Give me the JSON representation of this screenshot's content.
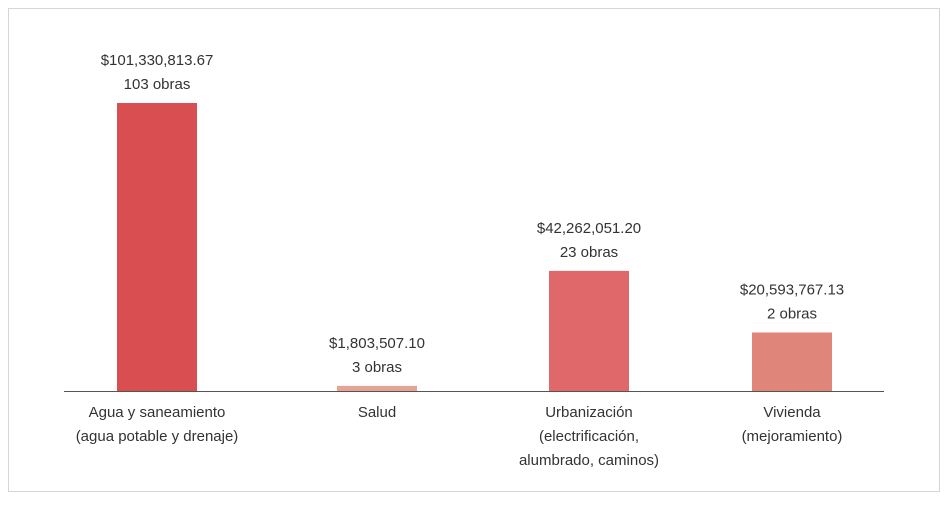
{
  "chart_data": {
    "type": "bar",
    "categories": [
      [
        "Agua y saneamiento",
        "(agua potable y drenaje)"
      ],
      [
        "Salud"
      ],
      [
        "Urbanización",
        "(electrificación,",
        "alumbrado, caminos)"
      ],
      [
        "Vivienda",
        "(mejoramiento)"
      ]
    ],
    "values": [
      101330813.67,
      1803507.1,
      42262051.2,
      20593767.13
    ],
    "value_labels": [
      "$101,330,813.67",
      "$1,803,507.10",
      "$42,262,051.20",
      "$20,593,767.13"
    ],
    "count_labels": [
      "103 obras",
      "3 obras",
      "23 obras",
      "2 obras"
    ],
    "colors": [
      "#d94f51",
      "#e6a497",
      "#e0676a",
      "#e0857a"
    ]
  }
}
